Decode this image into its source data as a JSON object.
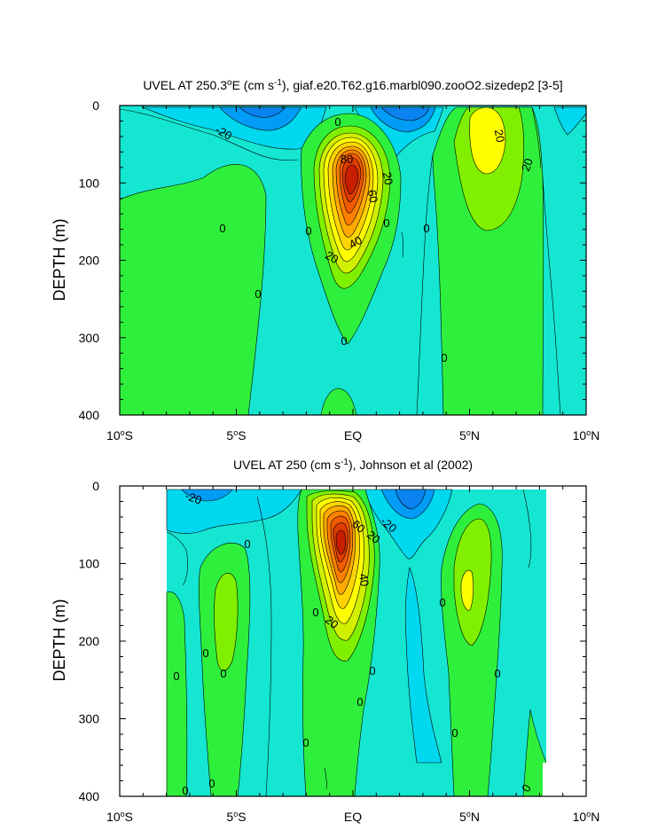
{
  "chart_data": [
    {
      "type": "contour",
      "title_parts": [
        "UVEL AT 250.3",
        "o",
        "E (cm s",
        "-1",
        "), giaf.e20.T62.g16.marbl090.zooO2.sizedep2 [3-5]"
      ],
      "title": "UVEL AT 250.3°E (cm s-1), giaf.e20.T62.g16.marbl090.zooO2.sizedep2 [3-5]",
      "ylabel": "DEPTH (m)",
      "xlabel": "",
      "x_ticks": [
        {
          "value": -10,
          "num": "10",
          "hem": "S"
        },
        {
          "value": -5,
          "num": "5",
          "hem": "S"
        },
        {
          "value": 0,
          "num": "EQ",
          "hem": ""
        },
        {
          "value": 5,
          "num": "5",
          "hem": "N"
        },
        {
          "value": 10,
          "num": "10",
          "hem": "N"
        }
      ],
      "y_ticks": [
        0,
        100,
        200,
        300,
        400
      ],
      "xlim": [
        -10,
        10
      ],
      "ylim": [
        0,
        400
      ],
      "contour_interval": 10,
      "contour_labels": [
        "-20",
        "0",
        "0",
        "0",
        "0",
        "0",
        "0",
        "0",
        "0",
        "20",
        "20",
        "20",
        "40",
        "60",
        "80",
        "20"
      ],
      "features": [
        {
          "name": "equatorial undercurrent core",
          "lat": -0.1,
          "depth": 100,
          "max": 80
        },
        {
          "name": "north equatorial countercurrent",
          "lat": 5.3,
          "depth": 50,
          "max": 20
        },
        {
          "name": "westward surface flow",
          "lat": -4.0,
          "depth": 10,
          "min": -30
        },
        {
          "name": "westward surface flow",
          "lat": 2.4,
          "depth": 10,
          "min": -30
        }
      ]
    },
    {
      "type": "contour",
      "title_parts": [
        "UVEL AT 250 (cm s",
        "-1",
        "), Johnson et al (2002)"
      ],
      "title": "UVEL AT 250 (cm s-1), Johnson et al (2002)",
      "ylabel": "DEPTH (m)",
      "xlabel": "",
      "x_ticks": [
        {
          "value": -10,
          "num": "10",
          "hem": "S"
        },
        {
          "value": -5,
          "num": "5",
          "hem": "S"
        },
        {
          "value": 0,
          "num": "EQ",
          "hem": ""
        },
        {
          "value": 5,
          "num": "5",
          "hem": "N"
        },
        {
          "value": 10,
          "num": "10",
          "hem": "N"
        }
      ],
      "y_ticks": [
        0,
        100,
        200,
        300,
        400
      ],
      "xlim": [
        -10,
        10
      ],
      "ylim": [
        0,
        400
      ],
      "data_extent_lat": [
        -7.9,
        8.2
      ],
      "data_extent_depth": [
        5,
        400
      ],
      "contour_interval": 10,
      "contour_labels": [
        "-20",
        "-20",
        "0",
        "0",
        "0",
        "0",
        "0",
        "0",
        "0",
        "0",
        "0",
        "0",
        "0",
        "0",
        "0",
        "20",
        "20",
        "40",
        "60",
        "0"
      ],
      "features": [
        {
          "name": "equatorial undercurrent core",
          "lat": -0.2,
          "depth": 75,
          "max": 90
        },
        {
          "name": "north equatorial countercurrent",
          "lat": 4.9,
          "depth": 140,
          "max": 20
        },
        {
          "name": "southern subsurface countercurrent",
          "lat": -5.3,
          "depth": 180,
          "max": 10
        },
        {
          "name": "westward surface flow",
          "lat": 2.4,
          "depth": 20,
          "min": -30
        }
      ]
    }
  ]
}
